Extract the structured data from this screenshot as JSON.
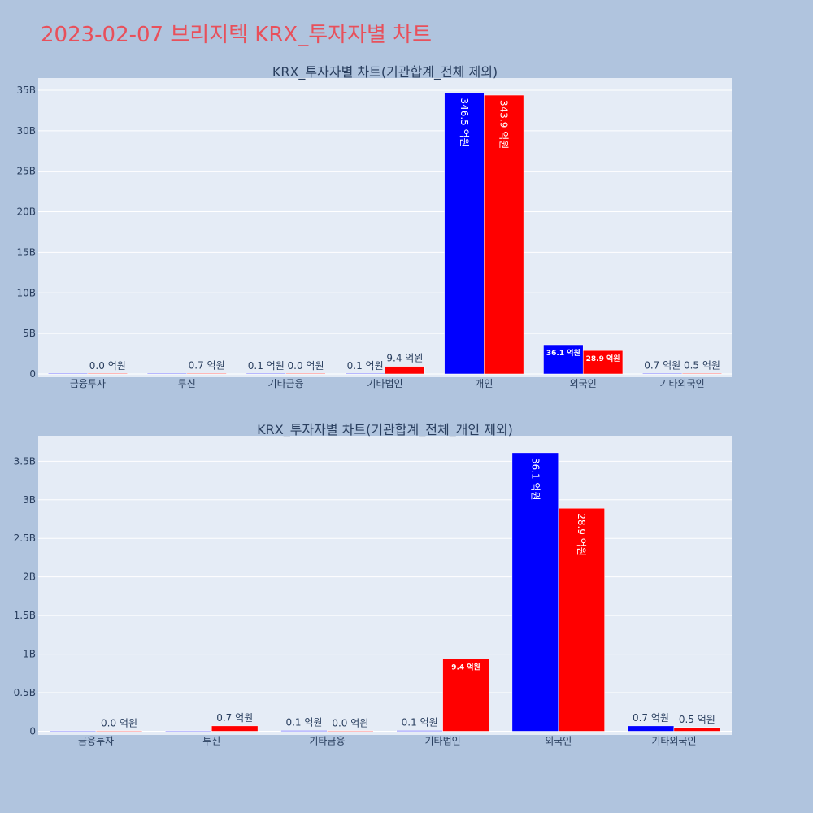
{
  "page": {
    "title": "2023-02-07 브리지텍 KRX_투자자별 차트",
    "background": "#b0c4de",
    "title_color": "#e8505b"
  },
  "colors": {
    "plot_background": "#e5ecf6",
    "grid": "#ffffff",
    "buy_series": "#0000ff",
    "sell_series": "#ff0000",
    "axis_text": "#2a3f5f"
  },
  "chart_data": [
    {
      "type": "bar",
      "title": "KRX_투자자별 차트(기관합계_전체 제외)",
      "categories": [
        "금융투자",
        "투신",
        "기타금융",
        "기타법인",
        "개인",
        "외국인",
        "기타외국인"
      ],
      "ylim": [
        0,
        36500000000
      ],
      "yticks": [
        0,
        5000000000,
        10000000000,
        15000000000,
        20000000000,
        25000000000,
        30000000000,
        35000000000
      ],
      "ytick_labels": [
        "0",
        "5B",
        "10B",
        "15B",
        "20B",
        "25B",
        "30B",
        "35B"
      ],
      "grid": true,
      "series": [
        {
          "color": "#0000ff",
          "values": [
            0,
            0,
            10000000,
            10000000,
            34650000000,
            3610000000,
            70000000
          ],
          "labels": [
            "",
            "",
            "0.1 억원",
            "0.1 억원",
            "346.5 억원",
            "36.1 억원",
            "0.7 억원"
          ]
        },
        {
          "color": "#ff0000",
          "values": [
            0,
            70000000,
            0,
            940000000,
            34390000000,
            2890000000,
            50000000
          ],
          "labels": [
            "0.0 억원",
            "0.7 억원",
            "0.0 억원",
            "9.4 억원",
            "343.9 억원",
            "28.9 억원",
            "0.5 억원"
          ]
        }
      ]
    },
    {
      "type": "bar",
      "title": "KRX_투자자별 차트(기관합계_전체_개인 제외)",
      "categories": [
        "금융투자",
        "투신",
        "기타금융",
        "기타법인",
        "외국인",
        "기타외국인"
      ],
      "ylim": [
        0,
        3830000000
      ],
      "yticks": [
        0,
        500000000,
        1000000000,
        1500000000,
        2000000000,
        2500000000,
        3000000000,
        3500000000
      ],
      "ytick_labels": [
        "0",
        "0.5B",
        "1B",
        "1.5B",
        "2B",
        "2.5B",
        "3B",
        "3.5B"
      ],
      "grid": true,
      "series": [
        {
          "color": "#0000ff",
          "values": [
            0,
            0,
            10000000,
            10000000,
            3610000000,
            70000000
          ],
          "labels": [
            "",
            "",
            "0.1 억원",
            "0.1 억원",
            "36.1 억원",
            "0.7 억원"
          ]
        },
        {
          "color": "#ff0000",
          "values": [
            0,
            70000000,
            0,
            940000000,
            2890000000,
            50000000
          ],
          "labels": [
            "0.0 억원",
            "0.7 억원",
            "0.0 억원",
            "9.4 억원",
            "28.9 억원",
            "0.5 억원"
          ]
        }
      ]
    }
  ]
}
